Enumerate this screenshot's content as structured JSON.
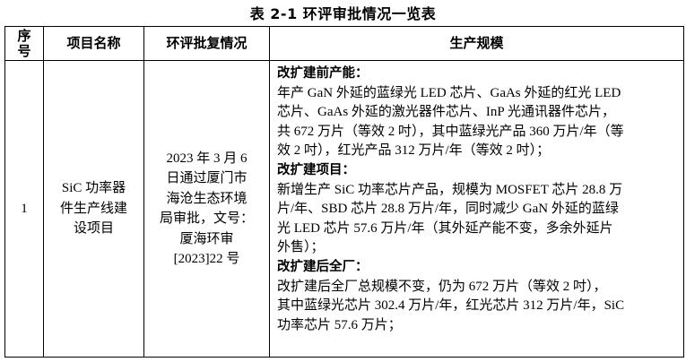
{
  "title": "表 2-1  环评审批情况一览表",
  "headers": {
    "no": [
      "序",
      "号"
    ],
    "name": "项目名称",
    "approval": "环评批复情况",
    "scale": "生产规模"
  },
  "row": {
    "no": "1",
    "name": [
      "SiC 功率器",
      "件生产线建",
      "设项目"
    ],
    "approval": [
      "2023 年 3 月 6",
      "日通过厦门市",
      "海沧生态环境",
      "局审批，文号：",
      "厦海环审",
      "[2023]22 号"
    ],
    "sections": [
      {
        "heading": "改扩建前产能：",
        "lines": [
          "年产 GaN 外延的蓝绿光 LED 芯片、GaAs 外延的红光 LED",
          "芯片、GaAs 外延的激光器件芯片、InP 光通讯器件芯片，",
          "共 672 万片（等效 2 吋），其中蓝绿光产品 360 万片/年（等",
          "效 2 吋），红光产品 312 万片/年（等效 2 吋）；"
        ]
      },
      {
        "heading": "改扩建项目：",
        "lines": [
          "新增生产 SiC 功率芯片产品，规模为 MOSFET 芯片 28.8 万",
          "片/年、SBD 芯片 28.8 万片/年，同时减少 GaN 外延的蓝绿",
          "光 LED 芯片 57.6 万片/年（其外延产能不变，多余外延片",
          "外售）；"
        ]
      },
      {
        "heading": "改扩建后全厂：",
        "lines": [
          "改扩建后全厂总规模不变，仍为 672 万片（等效 2 吋），",
          "其中蓝绿光芯片 302.4 万片/年，红光芯片 312 万片/年，SiC",
          "功率芯片 57.6 万片；"
        ]
      }
    ]
  }
}
